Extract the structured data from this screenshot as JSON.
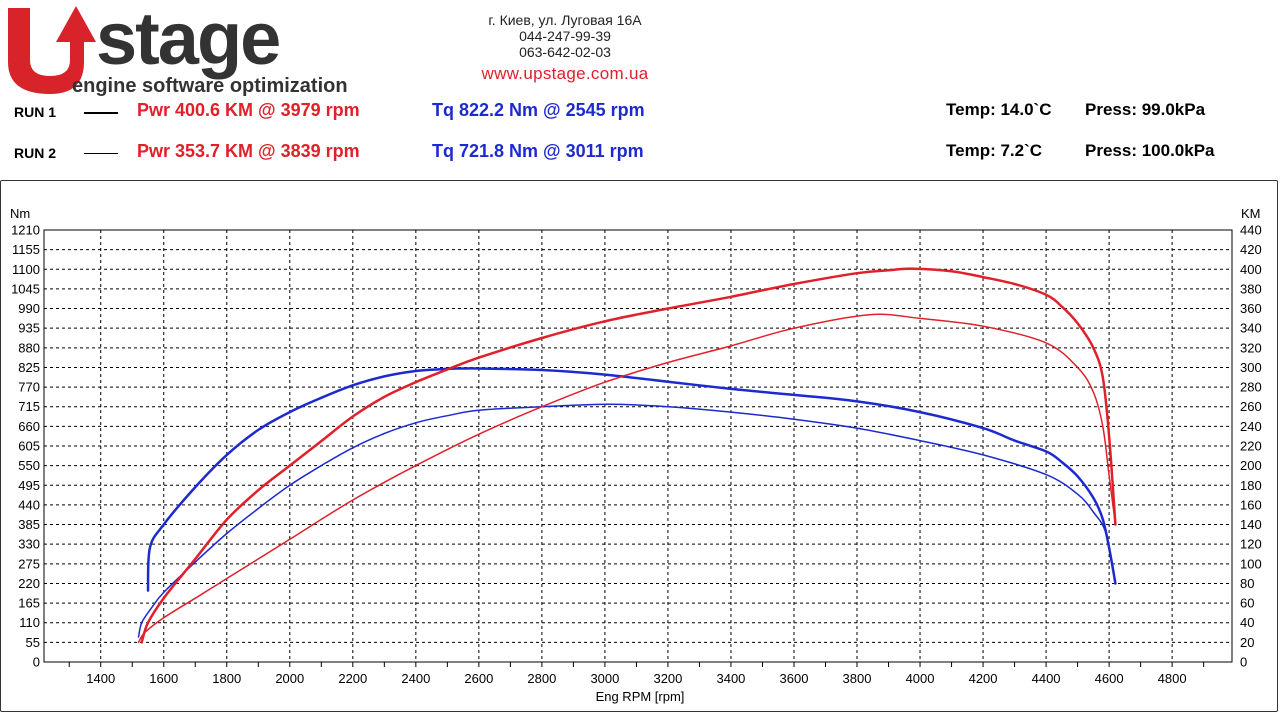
{
  "brand": {
    "logo_word": "Upstage",
    "tagline": "engine software optimization"
  },
  "contact": {
    "address": "г. Киев, ул. Луговая 16А",
    "phone1": "044-247-99-39",
    "phone2": "063-642-02-03",
    "url": "www.upstage.com.ua"
  },
  "runs": [
    {
      "label": "RUN 1",
      "pwr": "Pwr  400.6 KM @ 3979 rpm",
      "tq": "Tq 822.2 Nm @ 2545 rpm",
      "temp": "Temp: 14.0`C",
      "press": "Press: 99.0kPa"
    },
    {
      "label": "RUN 2",
      "pwr": "Pwr  353.7 KM @ 3839 rpm",
      "tq": "Tq 721.8 Nm @ 3011 rpm",
      "temp": "Temp: 7.2`C",
      "press": "Press: 100.0kPa"
    }
  ],
  "colors": {
    "power": "#e0202a",
    "torque": "#1d2ad0",
    "brand_red": "#d8232a",
    "brand_dark": "#333333"
  },
  "chart_data": {
    "type": "line",
    "xlabel": "Eng RPM [rpm]",
    "ylabel_left": "Nm",
    "ylabel_right": "KM",
    "xlim": [
      1220,
      4990
    ],
    "x_ticks": [
      1400,
      1600,
      1800,
      2000,
      2200,
      2400,
      2600,
      2800,
      3000,
      3200,
      3400,
      3600,
      3800,
      4000,
      4200,
      4400,
      4600,
      4800
    ],
    "ylim_left": [
      0,
      1210
    ],
    "y_ticks_left": [
      0,
      55,
      110,
      165,
      220,
      275,
      330,
      385,
      440,
      495,
      550,
      605,
      660,
      715,
      770,
      825,
      880,
      935,
      990,
      1045,
      1100,
      1155,
      1210
    ],
    "ylim_right": [
      0,
      440
    ],
    "y_ticks_right": [
      0,
      20,
      40,
      60,
      80,
      100,
      120,
      140,
      160,
      180,
      200,
      220,
      240,
      260,
      280,
      300,
      320,
      340,
      360,
      380,
      400,
      420,
      440
    ],
    "grid": true,
    "series": [
      {
        "id": "tq1",
        "axis": "left",
        "color": "#1d2ad0",
        "width": 2.5,
        "x": [
          1550,
          1556,
          1600,
          1700,
          1800,
          1900,
          2000,
          2100,
          2200,
          2300,
          2400,
          2500,
          2545,
          2600,
          2800,
          3000,
          3200,
          3400,
          3600,
          3800,
          4000,
          4200,
          4300,
          4400,
          4450,
          4500,
          4550,
          4580,
          4600,
          4620
        ],
        "y": [
          200,
          320,
          385,
          490,
          580,
          650,
          700,
          740,
          775,
          800,
          815,
          821,
          822,
          822,
          818,
          805,
          785,
          765,
          748,
          730,
          700,
          655,
          620,
          590,
          560,
          520,
          460,
          400,
          320,
          220
        ]
      },
      {
        "id": "tq2",
        "axis": "left",
        "color": "#1d2ad0",
        "width": 1.5,
        "x": [
          1520,
          1530,
          1560,
          1600,
          1700,
          1800,
          1900,
          2000,
          2100,
          2200,
          2300,
          2400,
          2500,
          2600,
          2800,
          3011,
          3200,
          3400,
          3600,
          3800,
          4000,
          4200,
          4400,
          4500,
          4550,
          4590,
          4620
        ],
        "y": [
          70,
          110,
          150,
          195,
          280,
          360,
          430,
          495,
          550,
          600,
          640,
          670,
          690,
          705,
          715,
          722,
          715,
          700,
          680,
          655,
          620,
          580,
          525,
          470,
          420,
          360,
          220
        ]
      },
      {
        "id": "pwr1",
        "axis": "right",
        "color": "#e0202a",
        "width": 2.5,
        "x": [
          1530,
          1550,
          1600,
          1700,
          1800,
          1900,
          2000,
          2100,
          2200,
          2300,
          2400,
          2500,
          2600,
          2800,
          3000,
          3200,
          3400,
          3600,
          3800,
          3900,
          3979,
          4100,
          4200,
          4300,
          4400,
          4450,
          4500,
          4550,
          4580,
          4600,
          4620
        ],
        "y": [
          20,
          40,
          65,
          105,
          145,
          175,
          200,
          225,
          250,
          270,
          285,
          298,
          310,
          330,
          347,
          360,
          372,
          385,
          396,
          399,
          400.6,
          398,
          392,
          385,
          374,
          362,
          345,
          320,
          290,
          230,
          140
        ]
      },
      {
        "id": "pwr2",
        "axis": "right",
        "color": "#e0202a",
        "width": 1.5,
        "x": [
          1520,
          1540,
          1600,
          1700,
          1800,
          1900,
          2000,
          2200,
          2400,
          2600,
          2800,
          3000,
          3200,
          3400,
          3600,
          3839,
          4000,
          4200,
          4400,
          4500,
          4550,
          4580,
          4600,
          4620
        ],
        "y": [
          20,
          30,
          45,
          65,
          85,
          105,
          125,
          165,
          200,
          232,
          260,
          285,
          305,
          322,
          340,
          353.7,
          350,
          342,
          325,
          300,
          275,
          240,
          190,
          140
        ]
      }
    ]
  }
}
